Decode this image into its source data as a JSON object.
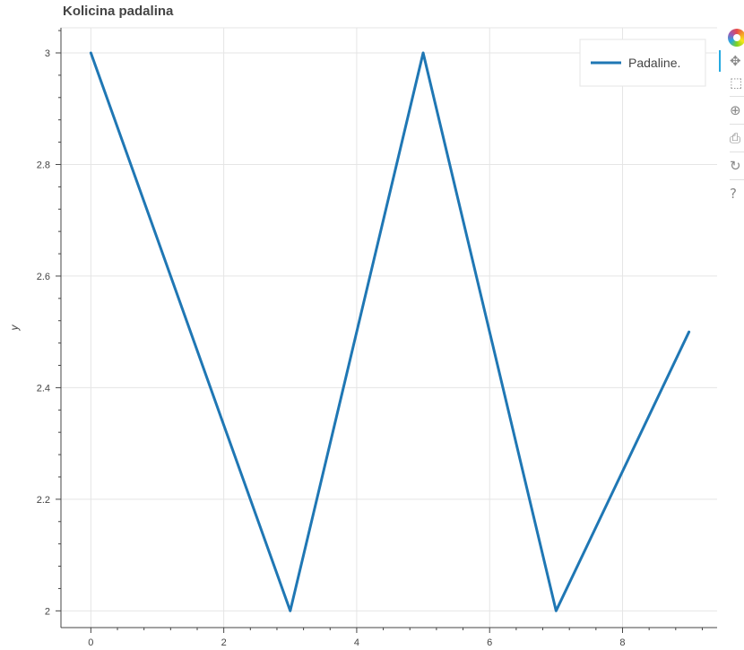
{
  "title": "Kolicina padalina",
  "toolbar": {
    "tools": [
      {
        "name": "pan-tool",
        "icon": "pan-icon",
        "glyph": "✥",
        "active": true
      },
      {
        "name": "box-zoom-tool",
        "icon": "box-zoom-icon",
        "glyph": "⬚",
        "active": false
      },
      {
        "name": "wheel-zoom-tool",
        "icon": "wheel-zoom-icon",
        "glyph": "⊕",
        "active": false
      },
      {
        "name": "save-tool",
        "icon": "save-icon",
        "glyph": "⎙",
        "active": false
      },
      {
        "name": "reset-tool",
        "icon": "reset-icon",
        "glyph": "↻",
        "active": false
      },
      {
        "name": "help-tool",
        "icon": "help-icon",
        "glyph": "?",
        "active": false
      }
    ]
  },
  "chart_data": {
    "type": "line",
    "title": "Kolicina padalina",
    "xlabel": "",
    "ylabel": "y",
    "xlim": [
      -0.45,
      9.45
    ],
    "ylim": [
      1.97,
      3.045
    ],
    "x_ticks": [
      0,
      2,
      4,
      6,
      8
    ],
    "y_ticks": [
      2,
      2.2,
      2.4,
      2.6,
      2.8,
      3
    ],
    "grid": true,
    "legend_position": "top-right",
    "series": [
      {
        "name": "Padaline.",
        "color": "#1f77b4",
        "x": [
          0,
          1,
          2,
          3,
          4,
          5,
          6,
          7,
          8,
          9
        ],
        "y": [
          3,
          2.667,
          2.333,
          2,
          2.5,
          3,
          2.5,
          2,
          2.25,
          2.5
        ]
      }
    ]
  }
}
